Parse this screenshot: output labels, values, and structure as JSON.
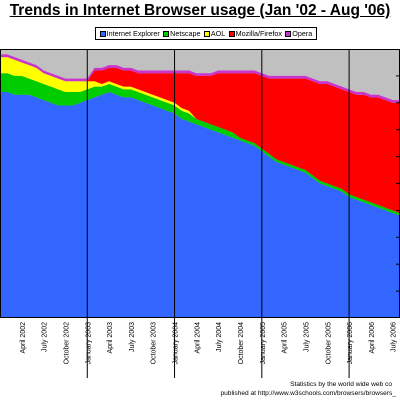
{
  "chart_data": {
    "type": "area",
    "title": "Trends in Internet Browser usage (Jan '02 - Aug '06)",
    "stacked": true,
    "ylim": [
      0,
      100
    ],
    "x": [
      "2002-01",
      "2002-02",
      "2002-03",
      "2002-04",
      "2002-05",
      "2002-06",
      "2002-07",
      "2002-08",
      "2002-09",
      "2002-10",
      "2002-11",
      "2002-12",
      "2003-01",
      "2003-02",
      "2003-03",
      "2003-04",
      "2003-05",
      "2003-06",
      "2003-07",
      "2003-08",
      "2003-09",
      "2003-10",
      "2003-11",
      "2003-12",
      "2004-01",
      "2004-02",
      "2004-03",
      "2004-04",
      "2004-05",
      "2004-06",
      "2004-07",
      "2004-08",
      "2004-09",
      "2004-10",
      "2004-11",
      "2004-12",
      "2005-01",
      "2005-02",
      "2005-03",
      "2005-04",
      "2005-05",
      "2005-06",
      "2005-07",
      "2005-08",
      "2005-09",
      "2005-10",
      "2005-11",
      "2005-12",
      "2006-01",
      "2006-02",
      "2006-03",
      "2006-04",
      "2006-05",
      "2006-06",
      "2006-07",
      "2006-08"
    ],
    "series": [
      {
        "name": "Internet Explorer",
        "color": "#3366ff",
        "values": [
          84,
          84,
          83,
          83,
          83,
          82,
          81,
          80,
          79,
          79,
          79,
          80,
          81,
          82,
          83,
          84,
          83,
          82,
          82,
          81,
          80,
          79,
          78,
          77,
          76,
          74,
          73,
          72,
          71,
          70,
          69,
          68,
          67,
          66,
          65,
          64,
          62,
          60,
          58,
          57,
          56,
          55,
          54,
          52,
          50,
          49,
          48,
          47,
          45,
          44,
          43,
          42,
          41,
          40,
          39,
          38
        ]
      },
      {
        "name": "Netscape",
        "color": "#00cc00",
        "values": [
          7,
          7,
          7,
          7,
          6,
          6,
          6,
          6,
          6,
          5,
          5,
          4,
          4,
          4,
          3,
          3,
          3,
          3,
          3,
          3,
          3,
          3,
          3,
          3,
          3,
          3,
          3,
          2,
          2,
          2,
          2,
          2,
          2,
          1,
          1,
          1,
          1,
          1,
          1,
          1,
          1,
          1,
          1,
          1,
          1,
          1,
          1,
          1,
          1,
          1,
          1,
          1,
          1,
          1,
          1,
          1
        ]
      },
      {
        "name": "AOL",
        "color": "#ffff00",
        "values": [
          6,
          6,
          6,
          5,
          5,
          5,
          4,
          4,
          4,
          4,
          4,
          4,
          3,
          2,
          1,
          1,
          1,
          1,
          1,
          1,
          1,
          1,
          1,
          1,
          1,
          1,
          1,
          0,
          0,
          0,
          0,
          0,
          0,
          0,
          0,
          0,
          0,
          0,
          0,
          0,
          0,
          0,
          0,
          0,
          0,
          0,
          0,
          0,
          0,
          0,
          0,
          0,
          0,
          0,
          0,
          0
        ]
      },
      {
        "name": "Mozilla/Firefox",
        "color": "#ff0000",
        "values": [
          0,
          0,
          0,
          0,
          0,
          0,
          0,
          0,
          0,
          0,
          0,
          0,
          0,
          4,
          5,
          5,
          6,
          6,
          6,
          6,
          7,
          8,
          9,
          10,
          11,
          13,
          14,
          16,
          17,
          18,
          20,
          21,
          22,
          24,
          25,
          26,
          27,
          28,
          30,
          31,
          32,
          33,
          34,
          35,
          36,
          37,
          37,
          37,
          38,
          38,
          39,
          39,
          40,
          40,
          40,
          41
        ]
      },
      {
        "name": "Opera",
        "color": "#cc33cc",
        "values": [
          1,
          1,
          1,
          1,
          1,
          1,
          1,
          1,
          1,
          1,
          1,
          1,
          1,
          1,
          1,
          1,
          1,
          1,
          1,
          1,
          1,
          1,
          1,
          1,
          1,
          1,
          1,
          1,
          1,
          1,
          1,
          1,
          1,
          1,
          1,
          1,
          1,
          1,
          1,
          1,
          1,
          1,
          1,
          1,
          1,
          1,
          1,
          1,
          1,
          1,
          1,
          1,
          1,
          1,
          1,
          1
        ]
      }
    ],
    "x_tick_labels": [
      "April 2002",
      "July 2002",
      "October 2002",
      "January 2003",
      "April 2003",
      "July 2003",
      "October 2003",
      "January 2004",
      "April 2004",
      "July 2004",
      "October 2004",
      "January 2005",
      "April 2005",
      "July 2005",
      "October 2005",
      "January 2006",
      "April 2006",
      "July 2006"
    ],
    "legend_placement": "top",
    "grid": false
  },
  "colors": {
    "background": "#c0c0c0",
    "year_line": "#000000"
  },
  "footer": {
    "line1": "Statistics by the world wide web co",
    "line2": "published at http://www.w3schools.com/browsers/browsers_"
  }
}
